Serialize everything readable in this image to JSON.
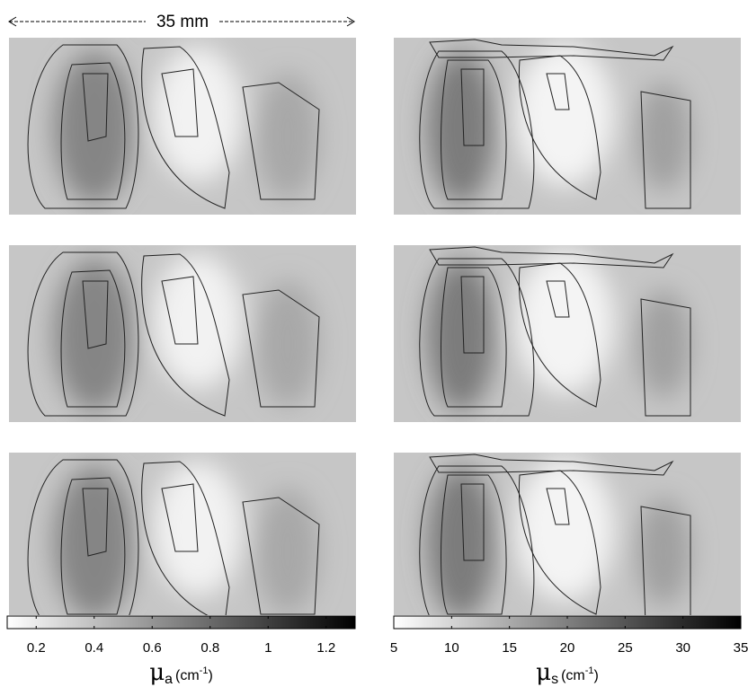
{
  "annotation": "35 mm",
  "chart_data": [
    {
      "type": "colorbar",
      "symbol": "μ",
      "subscript": "a",
      "unit": "(cm",
      "superscript": "-1",
      "unit_close": ")",
      "xlim": [
        0.1,
        1.3
      ],
      "xticks": [
        0.2,
        0.4,
        0.6,
        0.8,
        1,
        1.2
      ]
    },
    {
      "type": "colorbar",
      "symbol": "μ",
      "subscript": "s",
      "unit": "(cm",
      "superscript": "-1",
      "unit_close": ")",
      "xlim": [
        5,
        35
      ],
      "xticks": [
        5,
        10,
        15,
        20,
        25,
        30,
        35
      ]
    }
  ]
}
